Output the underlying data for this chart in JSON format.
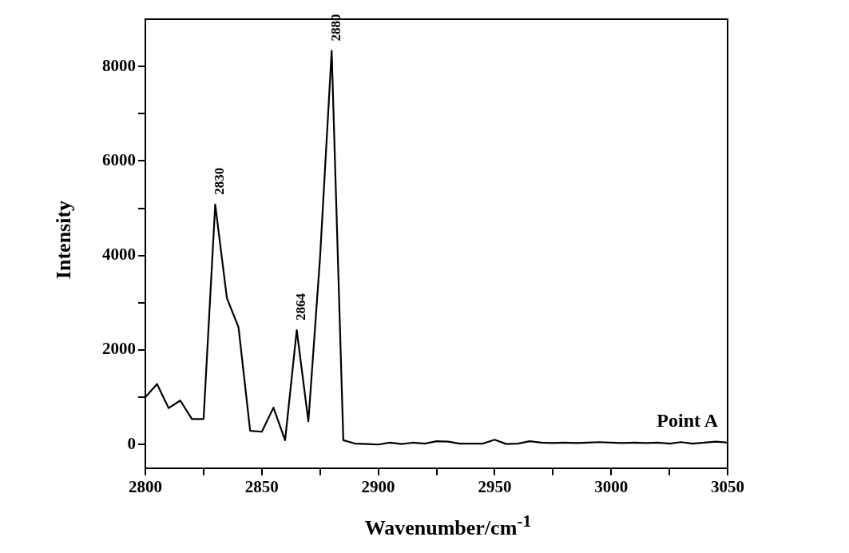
{
  "chart_data": {
    "type": "line",
    "xlabel": "Wavenumber/cm$^{-1}$",
    "ylabel": "Intensity",
    "x": [
      2800,
      2805,
      2810,
      2815,
      2820,
      2825,
      2830,
      2835,
      2840,
      2845,
      2850,
      2855,
      2860,
      2865,
      2870,
      2875,
      2880,
      2885,
      2890,
      2895,
      2900,
      2905,
      2910,
      2915,
      2920,
      2925,
      2930,
      2935,
      2940,
      2945,
      2950,
      2955,
      2960,
      2965,
      2970,
      2975,
      2980,
      2985,
      2990,
      2995,
      3000,
      3005,
      3010,
      3015,
      3020,
      3025,
      3030,
      3035,
      3040,
      3045,
      3050
    ],
    "series": [
      {
        "color": "#000000",
        "values": [
          1000,
          1280,
          770,
          930,
          540,
          540,
          5080,
          3100,
          2480,
          290,
          270,
          780,
          90,
          2420,
          490,
          3950,
          8330,
          90,
          20,
          10,
          0,
          40,
          10,
          40,
          20,
          70,
          60,
          20,
          20,
          20,
          100,
          10,
          20,
          70,
          40,
          30,
          40,
          30,
          40,
          50,
          40,
          30,
          40,
          30,
          40,
          20,
          50,
          20,
          40,
          60,
          40
        ]
      }
    ],
    "xlim": [
      2800,
      3050
    ],
    "ylim": [
      -500,
      9000
    ],
    "xticks": [
      2800,
      {
        "value": 2825,
        "label": null
      },
      2850,
      {
        "value": 2875,
        "label": null
      },
      2900,
      {
        "value": 2925,
        "label": null
      },
      2950,
      {
        "value": 2975,
        "label": null
      },
      3000,
      {
        "value": 3025,
        "label": null
      },
      3050
    ],
    "yticks": [
      0,
      {
        "value": 1000,
        "label": null
      },
      2000,
      {
        "value": 3000,
        "label": null
      },
      4000,
      {
        "value": 5000,
        "label": null
      },
      6000,
      {
        "value": 7000,
        "label": null
      },
      8000
    ],
    "annotations": [
      {
        "text": "2830",
        "x": 2830,
        "y": 5080
      },
      {
        "text": "2864",
        "x": 2865,
        "y": 2420
      },
      {
        "text": "2880",
        "x": 2880,
        "y": 8330
      },
      "Point A"
    ],
    "grid": false,
    "legend": false,
    "marker": "none",
    "line_style": "solid"
  }
}
